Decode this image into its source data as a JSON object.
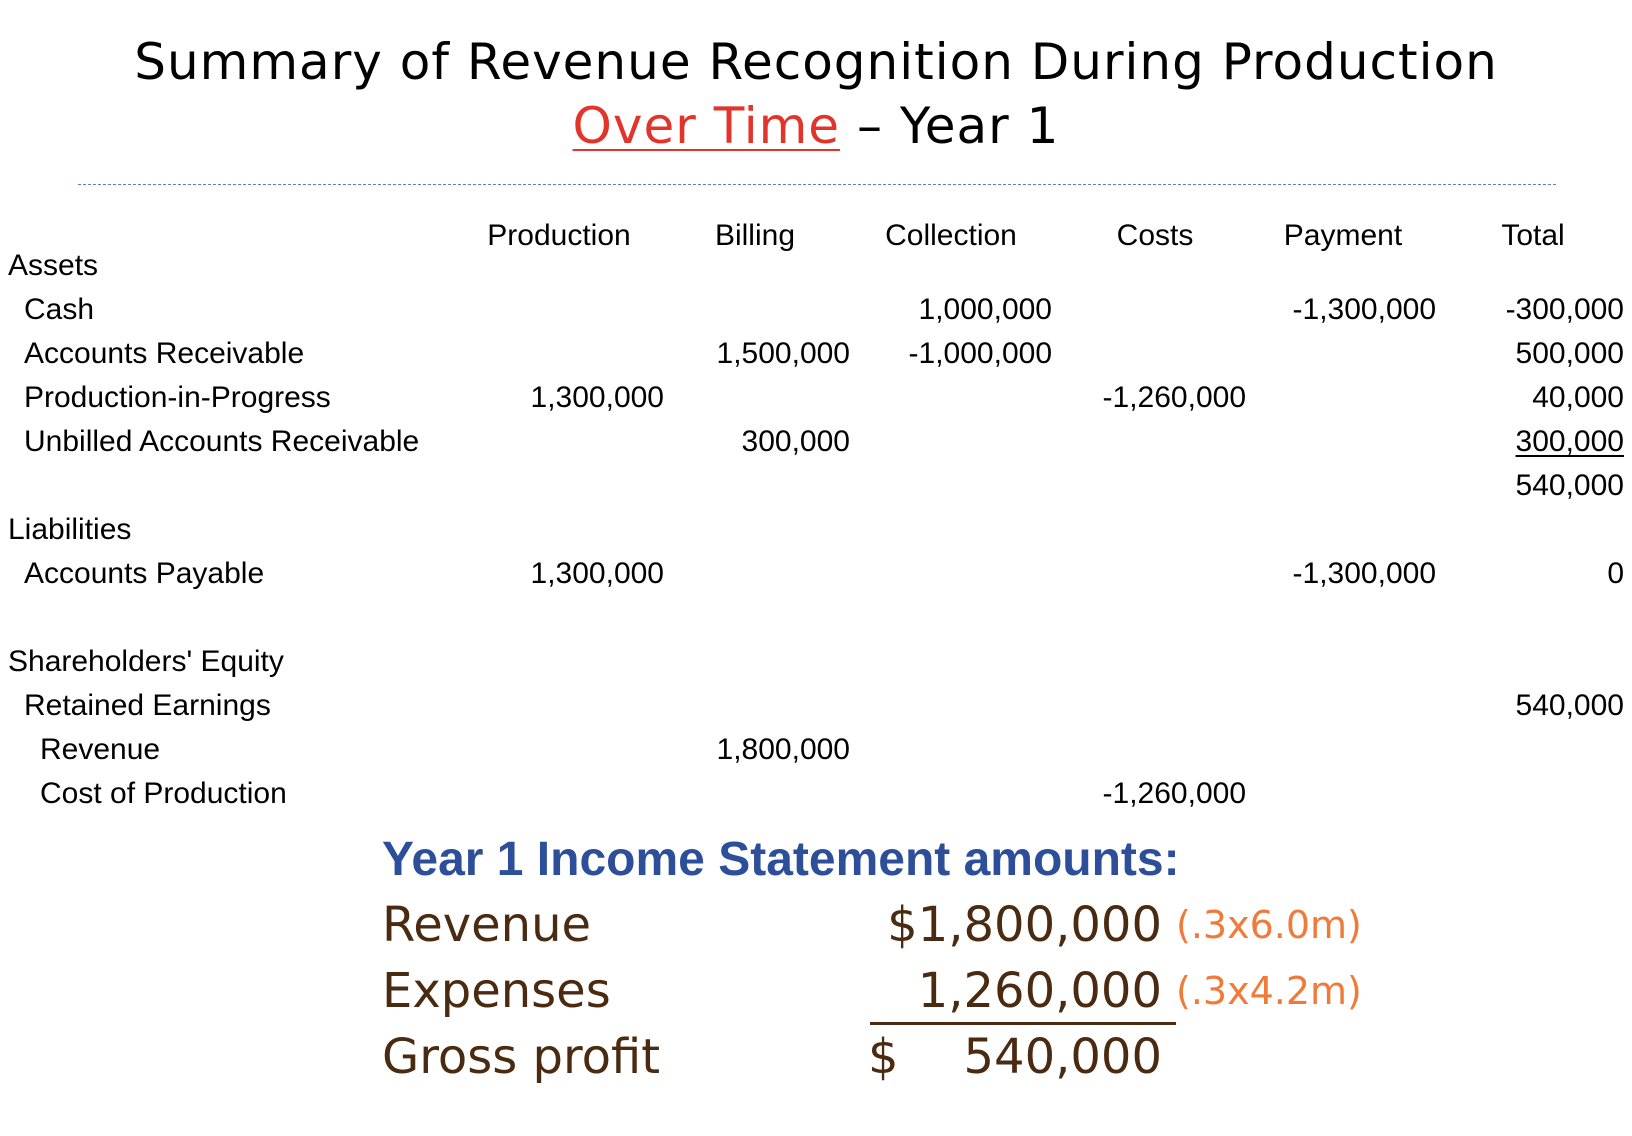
{
  "title": {
    "line1": "Summary of Revenue Recognition During Production",
    "accent": "Over Time",
    "suffix": " – Year 1"
  },
  "table": {
    "columns": [
      "Production",
      "Billing",
      "Collection",
      "Costs",
      "Payment",
      "Total"
    ],
    "sections": {
      "assets": "Assets",
      "liabilities": "Liabilities",
      "equity": "Shareholders' Equity"
    },
    "rows": {
      "cash": {
        "label": "Cash",
        "collection": "1,000,000",
        "payment": "-1,300,000",
        "total": "-300,000"
      },
      "ar": {
        "label": "Accounts Receivable",
        "billing": "1,500,000",
        "collection": "-1,000,000",
        "total": "500,000"
      },
      "pip": {
        "label": "Production-in-Progress",
        "production": "1,300,000",
        "costs": "-1,260,000",
        "total": "40,000"
      },
      "uar": {
        "label": "Unbilled Accounts Receivable",
        "billing": "300,000",
        "total": "300,000"
      },
      "assets_total": "540,000",
      "ap": {
        "label": "Accounts Payable",
        "production": "1,300,000",
        "payment": "-1,300,000",
        "total": "0"
      },
      "re": {
        "label": "Retained Earnings",
        "total": "540,000"
      },
      "revenue": {
        "label": "Revenue",
        "billing": "1,800,000"
      },
      "cop": {
        "label": "Cost of Production",
        "costs": "-1,260,000"
      }
    }
  },
  "income_statement": {
    "heading": "Year 1 Income Statement amounts:",
    "revenue": {
      "label": "Revenue",
      "amount": "$1,800,000",
      "note": "(.3x6.0m)"
    },
    "expenses": {
      "label": "Expenses",
      "amount": "1,260,000",
      "note": "(.3x4.2m)"
    },
    "gross_profit": {
      "label": "Gross profit",
      "currency": "$",
      "amount": "540,000"
    }
  },
  "colors": {
    "accent": "#e3342b",
    "divider": "#5b7ec6",
    "heading": "#2d4f9a",
    "statement_text": "#4a2a10",
    "note": "#f07a3a"
  }
}
